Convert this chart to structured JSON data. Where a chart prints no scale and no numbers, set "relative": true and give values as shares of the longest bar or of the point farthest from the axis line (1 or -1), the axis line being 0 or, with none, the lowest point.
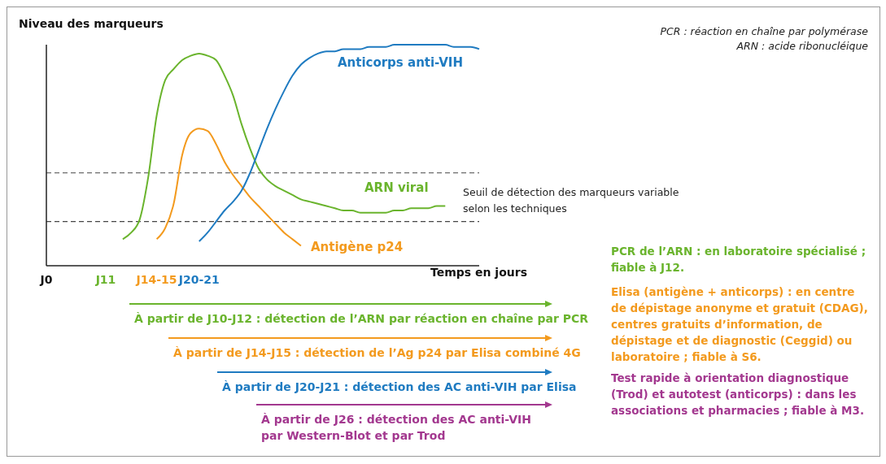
{
  "chart_data": {
    "type": "line",
    "relative": true,
    "ylabel": "Niveau des marqueurs",
    "xlabel": "Temps en jours",
    "categories": [
      "J0",
      null,
      null,
      null,
      null,
      null,
      null,
      "J11",
      null,
      null,
      null,
      null,
      null,
      "J14-15",
      null,
      null,
      null,
      null,
      "J20-21",
      null,
      null,
      null,
      null,
      null,
      null,
      null,
      null,
      null,
      null,
      null,
      null,
      null,
      null,
      null,
      null,
      null,
      null,
      null,
      null,
      null,
      null,
      null,
      null,
      null,
      null,
      null,
      null,
      null,
      null,
      null,
      null,
      null
    ],
    "marker": "none",
    "line_style": "solid",
    "grid": false,
    "legend": false,
    "series": [
      {
        "name": "ARN viral",
        "color": "#6ab42d",
        "values": [
          null,
          null,
          null,
          null,
          null,
          null,
          null,
          null,
          null,
          0.12,
          0.15,
          0.21,
          0.4,
          0.68,
          0.84,
          0.89,
          0.93,
          0.95,
          0.96,
          0.95,
          0.93,
          0.86,
          0.77,
          0.64,
          0.53,
          0.44,
          0.39,
          0.36,
          0.34,
          0.32,
          0.3,
          0.29,
          0.28,
          0.27,
          0.26,
          0.25,
          0.25,
          0.24,
          0.24,
          0.24,
          0.24,
          0.25,
          0.25,
          0.26,
          0.26,
          0.26,
          0.27,
          0.27,
          null,
          null,
          null,
          null
        ]
      },
      {
        "name": "Antigène p24",
        "color": "#f39a1e",
        "values": [
          null,
          null,
          null,
          null,
          null,
          null,
          null,
          null,
          null,
          null,
          null,
          null,
          null,
          0.12,
          0.17,
          0.28,
          0.5,
          0.6,
          0.62,
          0.61,
          0.55,
          0.47,
          0.41,
          0.36,
          0.31,
          0.27,
          0.23,
          0.19,
          0.15,
          0.12,
          0.09,
          null,
          null,
          null,
          null,
          null,
          null,
          null,
          null,
          null,
          null,
          null,
          null,
          null,
          null,
          null,
          null,
          null,
          null,
          null,
          null,
          null
        ]
      },
      {
        "name": "Anticorps anti-VIH",
        "color": "#1f7bc1",
        "values": [
          null,
          null,
          null,
          null,
          null,
          null,
          null,
          null,
          null,
          null,
          null,
          null,
          null,
          null,
          null,
          null,
          null,
          null,
          0.11,
          0.15,
          0.2,
          0.25,
          0.29,
          0.34,
          0.42,
          0.52,
          0.62,
          0.71,
          0.79,
          0.86,
          0.91,
          0.94,
          0.96,
          0.97,
          0.97,
          0.98,
          0.98,
          0.98,
          0.99,
          0.99,
          0.99,
          1.0,
          1.0,
          1.0,
          1.0,
          1.0,
          1.0,
          1.0,
          0.99,
          0.99,
          0.99,
          0.98
        ]
      }
    ],
    "ref_lines": [
      {
        "axis": "y",
        "value": 0.42,
        "label": "Seuil de détection des marqueurs variable selon les techniques",
        "color": "#444444",
        "line_style": "dashed"
      },
      {
        "axis": "y",
        "value": 0.2,
        "color": "#444444",
        "line_style": "dashed"
      }
    ],
    "annotations": [
      "PCR : réaction en chaîne par polymérase",
      "ARN : acide ribonucléique",
      "PCR de l’ARN : en laboratoire spécialisé ; fiable à J12.",
      "Elisa (antigène + anticorps) : en centre de dépistage anonyme et gratuit (CDAG), centres gratuits d’information, de dépistage et de diagnostic (Ceggid) ou laboratoire ; fiable à S6.",
      "Test rapide à orientation diagnostique (Trod) et autotest (anticorps) : dans les associations et pharmacies ; fiable à M3.",
      "À partir de J10-J12 : détection de l’ARN par réaction en chaîne par PCR",
      "À partir de J14-J15 : détection de l’Ag p24 par Elisa combiné 4G",
      "À partir de J20-J21 : détection des AC anti-VIH par Elisa",
      "À partir de J26 : détection des AC anti-VIH par Western-Blot et par Trod"
    ]
  }
}
